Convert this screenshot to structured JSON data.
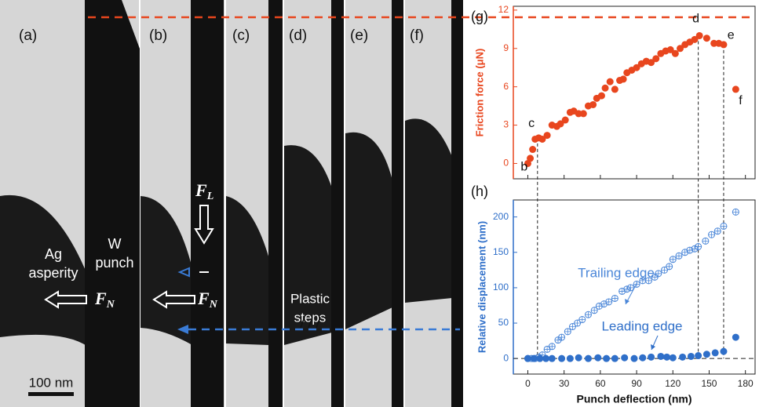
{
  "micrograph": {
    "panels": [
      "(a)",
      "(b)",
      "(c)",
      "(d)",
      "(e)",
      "(f)"
    ],
    "ag_label": [
      "Ag",
      "asperity"
    ],
    "w_label": [
      "W",
      "punch"
    ],
    "plastic_label": [
      "Plastic",
      "steps"
    ],
    "force_normal": {
      "symbol": "F",
      "subscript": "N"
    },
    "force_lateral": {
      "symbol": "F",
      "subscript": "L"
    },
    "scale_bar": "100 nm"
  },
  "chart_data": [
    {
      "type": "scatter",
      "panel_label": "(g)",
      "y_label": "Friction force (μN)",
      "color": "#e8461e",
      "xlim": [
        -12,
        188
      ],
      "xticks": [
        0,
        30,
        60,
        90,
        120,
        150,
        180
      ],
      "ylim": [
        -1.2,
        12.3
      ],
      "yticks": [
        0,
        3,
        6,
        9,
        12
      ],
      "x": [
        0,
        2,
        4,
        6,
        9,
        12,
        16,
        20,
        24,
        27,
        31,
        35,
        38,
        42,
        46,
        50,
        54,
        57,
        61,
        64,
        68,
        72,
        76,
        79,
        82,
        86,
        90,
        94,
        98,
        102,
        106,
        110,
        114,
        118,
        122,
        126,
        130,
        134,
        138,
        142,
        148,
        154,
        158,
        162,
        172
      ],
      "values": [
        0,
        0.4,
        1.1,
        1.9,
        2.0,
        1.9,
        2.2,
        3.0,
        2.9,
        3.1,
        3.4,
        4.0,
        4.1,
        3.9,
        3.9,
        4.5,
        4.6,
        5.1,
        5.3,
        5.9,
        6.4,
        5.8,
        6.5,
        6.6,
        7.1,
        7.3,
        7.5,
        7.8,
        8.0,
        7.9,
        8.2,
        8.6,
        8.8,
        8.9,
        8.6,
        9.0,
        9.3,
        9.5,
        9.7,
        10.0,
        9.8,
        9.4,
        9.4,
        9.3,
        5.8
      ],
      "annotations": [
        {
          "text": "b",
          "x": -3,
          "y": -0.3
        },
        {
          "text": "c",
          "x": 3,
          "y": 3.1
        },
        {
          "text": "d",
          "x": 139,
          "y": 11.3
        },
        {
          "text": "e",
          "x": 168,
          "y": 10.0
        },
        {
          "text": "f",
          "x": 176,
          "y": 4.9
        }
      ],
      "reference_lines": [
        {
          "x": 8,
          "y": 2.0
        },
        {
          "x": 141,
          "y": 10.0
        },
        {
          "x": 162,
          "y": 9.3
        }
      ]
    },
    {
      "type": "scatter",
      "panel_label": "(h)",
      "x_label": "Punch deflection (nm)",
      "y_label": "Relative displacement (nm)",
      "label_color": "#2f6fc9",
      "xlim": [
        -12,
        188
      ],
      "xticks": [
        0,
        30,
        60,
        90,
        120,
        150,
        180
      ],
      "ylim": [
        -22,
        224
      ],
      "yticks": [
        0,
        50,
        100,
        150,
        200
      ],
      "reference_y": 0,
      "series": [
        {
          "name": "Trailing edge",
          "color": "#4a86d8",
          "marker": "open",
          "x": [
            0,
            3,
            6,
            9,
            12,
            16,
            20,
            25,
            28,
            33,
            37,
            41,
            45,
            50,
            55,
            59,
            63,
            67,
            72,
            78,
            82,
            85,
            90,
            95,
            100,
            105,
            108,
            113,
            117,
            120,
            125,
            130,
            134,
            138,
            141,
            147,
            152,
            157,
            162,
            172
          ],
          "values": [
            0,
            0,
            0,
            2,
            5,
            13,
            17,
            26,
            30,
            38,
            45,
            50,
            55,
            62,
            68,
            74,
            77,
            80,
            85,
            95,
            98,
            100,
            105,
            110,
            110,
            115,
            120,
            125,
            130,
            140,
            145,
            150,
            153,
            155,
            158,
            166,
            175,
            180,
            187,
            207
          ]
        },
        {
          "name": "Leading edge",
          "color": "#2f6fc9",
          "marker": "filled",
          "x": [
            0,
            5,
            10,
            15,
            20,
            28,
            35,
            42,
            50,
            58,
            65,
            72,
            80,
            88,
            95,
            102,
            110,
            115,
            120,
            128,
            135,
            141,
            148,
            155,
            162,
            172
          ],
          "values": [
            0,
            0,
            0,
            0,
            0,
            0,
            0,
            1,
            0,
            1,
            0,
            0,
            1,
            0,
            1,
            2,
            3,
            2,
            1,
            2,
            3,
            4,
            6,
            8,
            10,
            30
          ]
        }
      ]
    }
  ]
}
